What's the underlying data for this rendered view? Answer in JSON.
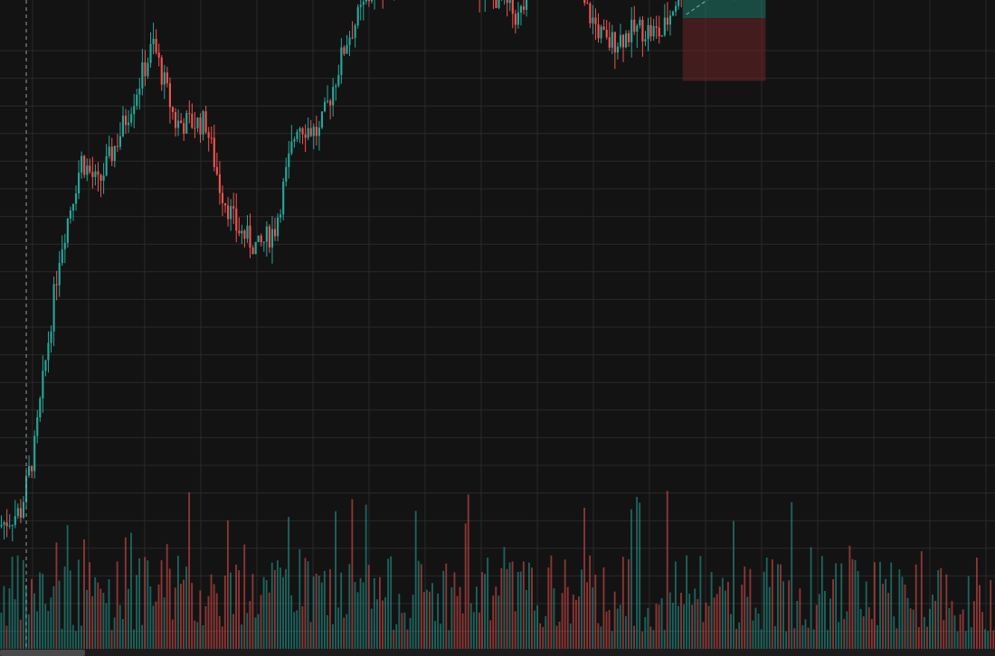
{
  "theme": {
    "background": "#131313",
    "grid": "#2a2a2a",
    "up_color": "#26a69a",
    "down_color": "#ef5350",
    "crosshair": "#9a9a9a",
    "profit_zone": "#1f7a6b",
    "loss_zone": "#6b2626"
  },
  "chart_data": {
    "type": "candlestick",
    "title": "",
    "xlabel": "",
    "ylabel": "",
    "price_range": [
      0,
      100
    ],
    "volume_range": [
      0,
      100
    ],
    "grid": true,
    "legend": "none",
    "price_waypoints": [
      [
        0,
        3
      ],
      [
        8,
        6
      ],
      [
        13,
        18
      ],
      [
        22,
        55
      ],
      [
        30,
        73
      ],
      [
        36,
        68
      ],
      [
        44,
        78
      ],
      [
        56,
        95
      ],
      [
        64,
        80
      ],
      [
        75,
        80
      ],
      [
        80,
        68
      ],
      [
        86,
        60
      ],
      [
        94,
        56
      ],
      [
        100,
        60
      ],
      [
        108,
        80
      ],
      [
        116,
        78
      ],
      [
        126,
        96
      ],
      [
        136,
        106
      ],
      [
        144,
        108
      ],
      [
        154,
        112
      ],
      [
        164,
        118
      ],
      [
        170,
        108
      ],
      [
        180,
        104
      ],
      [
        188,
        100
      ],
      [
        200,
        113
      ],
      [
        210,
        104
      ],
      [
        220,
        95
      ],
      [
        232,
        98
      ],
      [
        240,
        97
      ],
      [
        250,
        110
      ],
      [
        260,
        107
      ],
      [
        272,
        110
      ],
      [
        284,
        117
      ],
      [
        296,
        120
      ],
      [
        308,
        124
      ],
      [
        318,
        130
      ],
      [
        328,
        134
      ],
      [
        338,
        125
      ],
      [
        344,
        118
      ],
      [
        352,
        115
      ]
    ],
    "position_tool": {
      "direction": "long",
      "start_index": 247,
      "end_index": 277,
      "entry_price": 100,
      "target_price": 111,
      "stop_price": 88
    },
    "crosshair": {
      "index": 9,
      "price": 130
    }
  },
  "scrollbar": {
    "position": 0.0,
    "visible_fraction": 0.085
  }
}
